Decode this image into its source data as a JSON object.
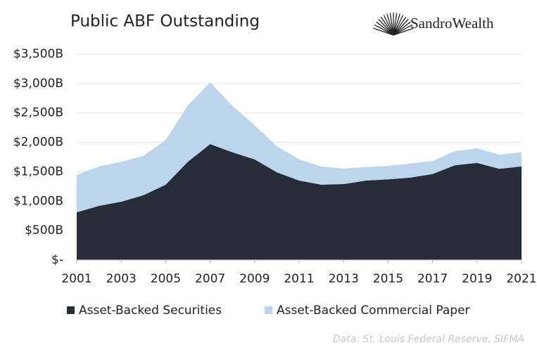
{
  "chart_data": {
    "type": "stacked-area",
    "title": "Public ABF Outstanding",
    "brand": "SandroWealth",
    "source": "Data: St. Louis Federal Reserve, SIFMA",
    "x": [
      2001,
      2002,
      2003,
      2004,
      2005,
      2006,
      2007,
      2008,
      2009,
      2010,
      2011,
      2012,
      2013,
      2014,
      2015,
      2016,
      2017,
      2018,
      2019,
      2020,
      2021
    ],
    "series": [
      {
        "name": "Asset-Backed Securities",
        "color": "#262c38",
        "values": [
          810,
          920,
          990,
          1100,
          1280,
          1670,
          1970,
          1830,
          1710,
          1490,
          1350,
          1280,
          1290,
          1350,
          1370,
          1400,
          1460,
          1610,
          1650,
          1550,
          1590
        ]
      },
      {
        "name": "Asset-Backed Commercial Paper",
        "color": "#bcd5ec",
        "values": [
          635,
          670,
          680,
          670,
          760,
          960,
          1050,
          790,
          580,
          445,
          360,
          310,
          265,
          230,
          230,
          240,
          225,
          240,
          250,
          240,
          240
        ]
      }
    ],
    "xlim": [
      2001,
      2021
    ],
    "xticks": [
      2001,
      2003,
      2005,
      2007,
      2009,
      2011,
      2013,
      2015,
      2017,
      2019,
      2021
    ],
    "ylim": [
      0,
      3500
    ],
    "yticks": [
      {
        "value": 0,
        "label": "$-"
      },
      {
        "value": 500,
        "label": "$500B"
      },
      {
        "value": 1000,
        "label": "$1,000B"
      },
      {
        "value": 1500,
        "label": "$1,500B"
      },
      {
        "value": 2000,
        "label": "$2,000B"
      },
      {
        "value": 2500,
        "label": "$2,500B"
      },
      {
        "value": 3000,
        "label": "$3,000B"
      },
      {
        "value": 3500,
        "label": "$3,500B"
      }
    ],
    "grid": true
  }
}
